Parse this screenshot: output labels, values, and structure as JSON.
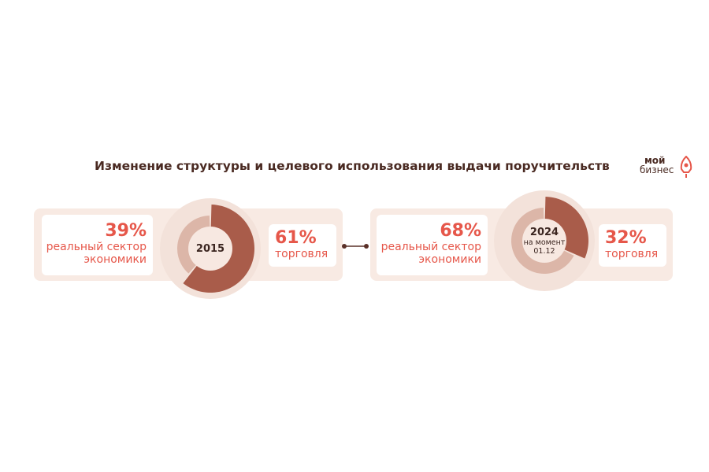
{
  "title": "Изменение структуры и целевого использования выдачи поручительств",
  "logo": {
    "line1": "мой",
    "line2": "бизнес",
    "icon": "rocket-logo-icon"
  },
  "colors": {
    "panel": "#f8eae3",
    "ring": "#f3e2da",
    "slice_dark": "#a95c4a",
    "slice_light": "#dcb6a8",
    "hole": "#f7e8e1",
    "accent_text": "#e6574a",
    "title_text": "#4a2a22"
  },
  "chart_data": [
    {
      "type": "pie",
      "title": "2015",
      "subtitle": "",
      "slices": [
        {
          "label": "реальный сектор экономики",
          "value": 39,
          "display": "39%"
        },
        {
          "label": "торговля",
          "value": 61,
          "display": "61%"
        }
      ]
    },
    {
      "type": "pie",
      "title": "2024",
      "subtitle": "на момент 01.12",
      "subtitle_line1": "на момент",
      "subtitle_line2": "01.12",
      "slices": [
        {
          "label": "реальный сектор экономики",
          "value": 68,
          "display": "68%"
        },
        {
          "label": "торговля",
          "value": 32,
          "display": "32%"
        }
      ]
    }
  ],
  "cards": {
    "left_big": {
      "pct": "39%",
      "line1": "реальный сектор",
      "line2": "экономики"
    },
    "left_small": {
      "pct": "61%",
      "line1": "торговля"
    },
    "right_big": {
      "pct": "68%",
      "line1": "реальный сектор",
      "line2": "экономики"
    },
    "right_small": {
      "pct": "32%",
      "line1": "торговля"
    }
  }
}
